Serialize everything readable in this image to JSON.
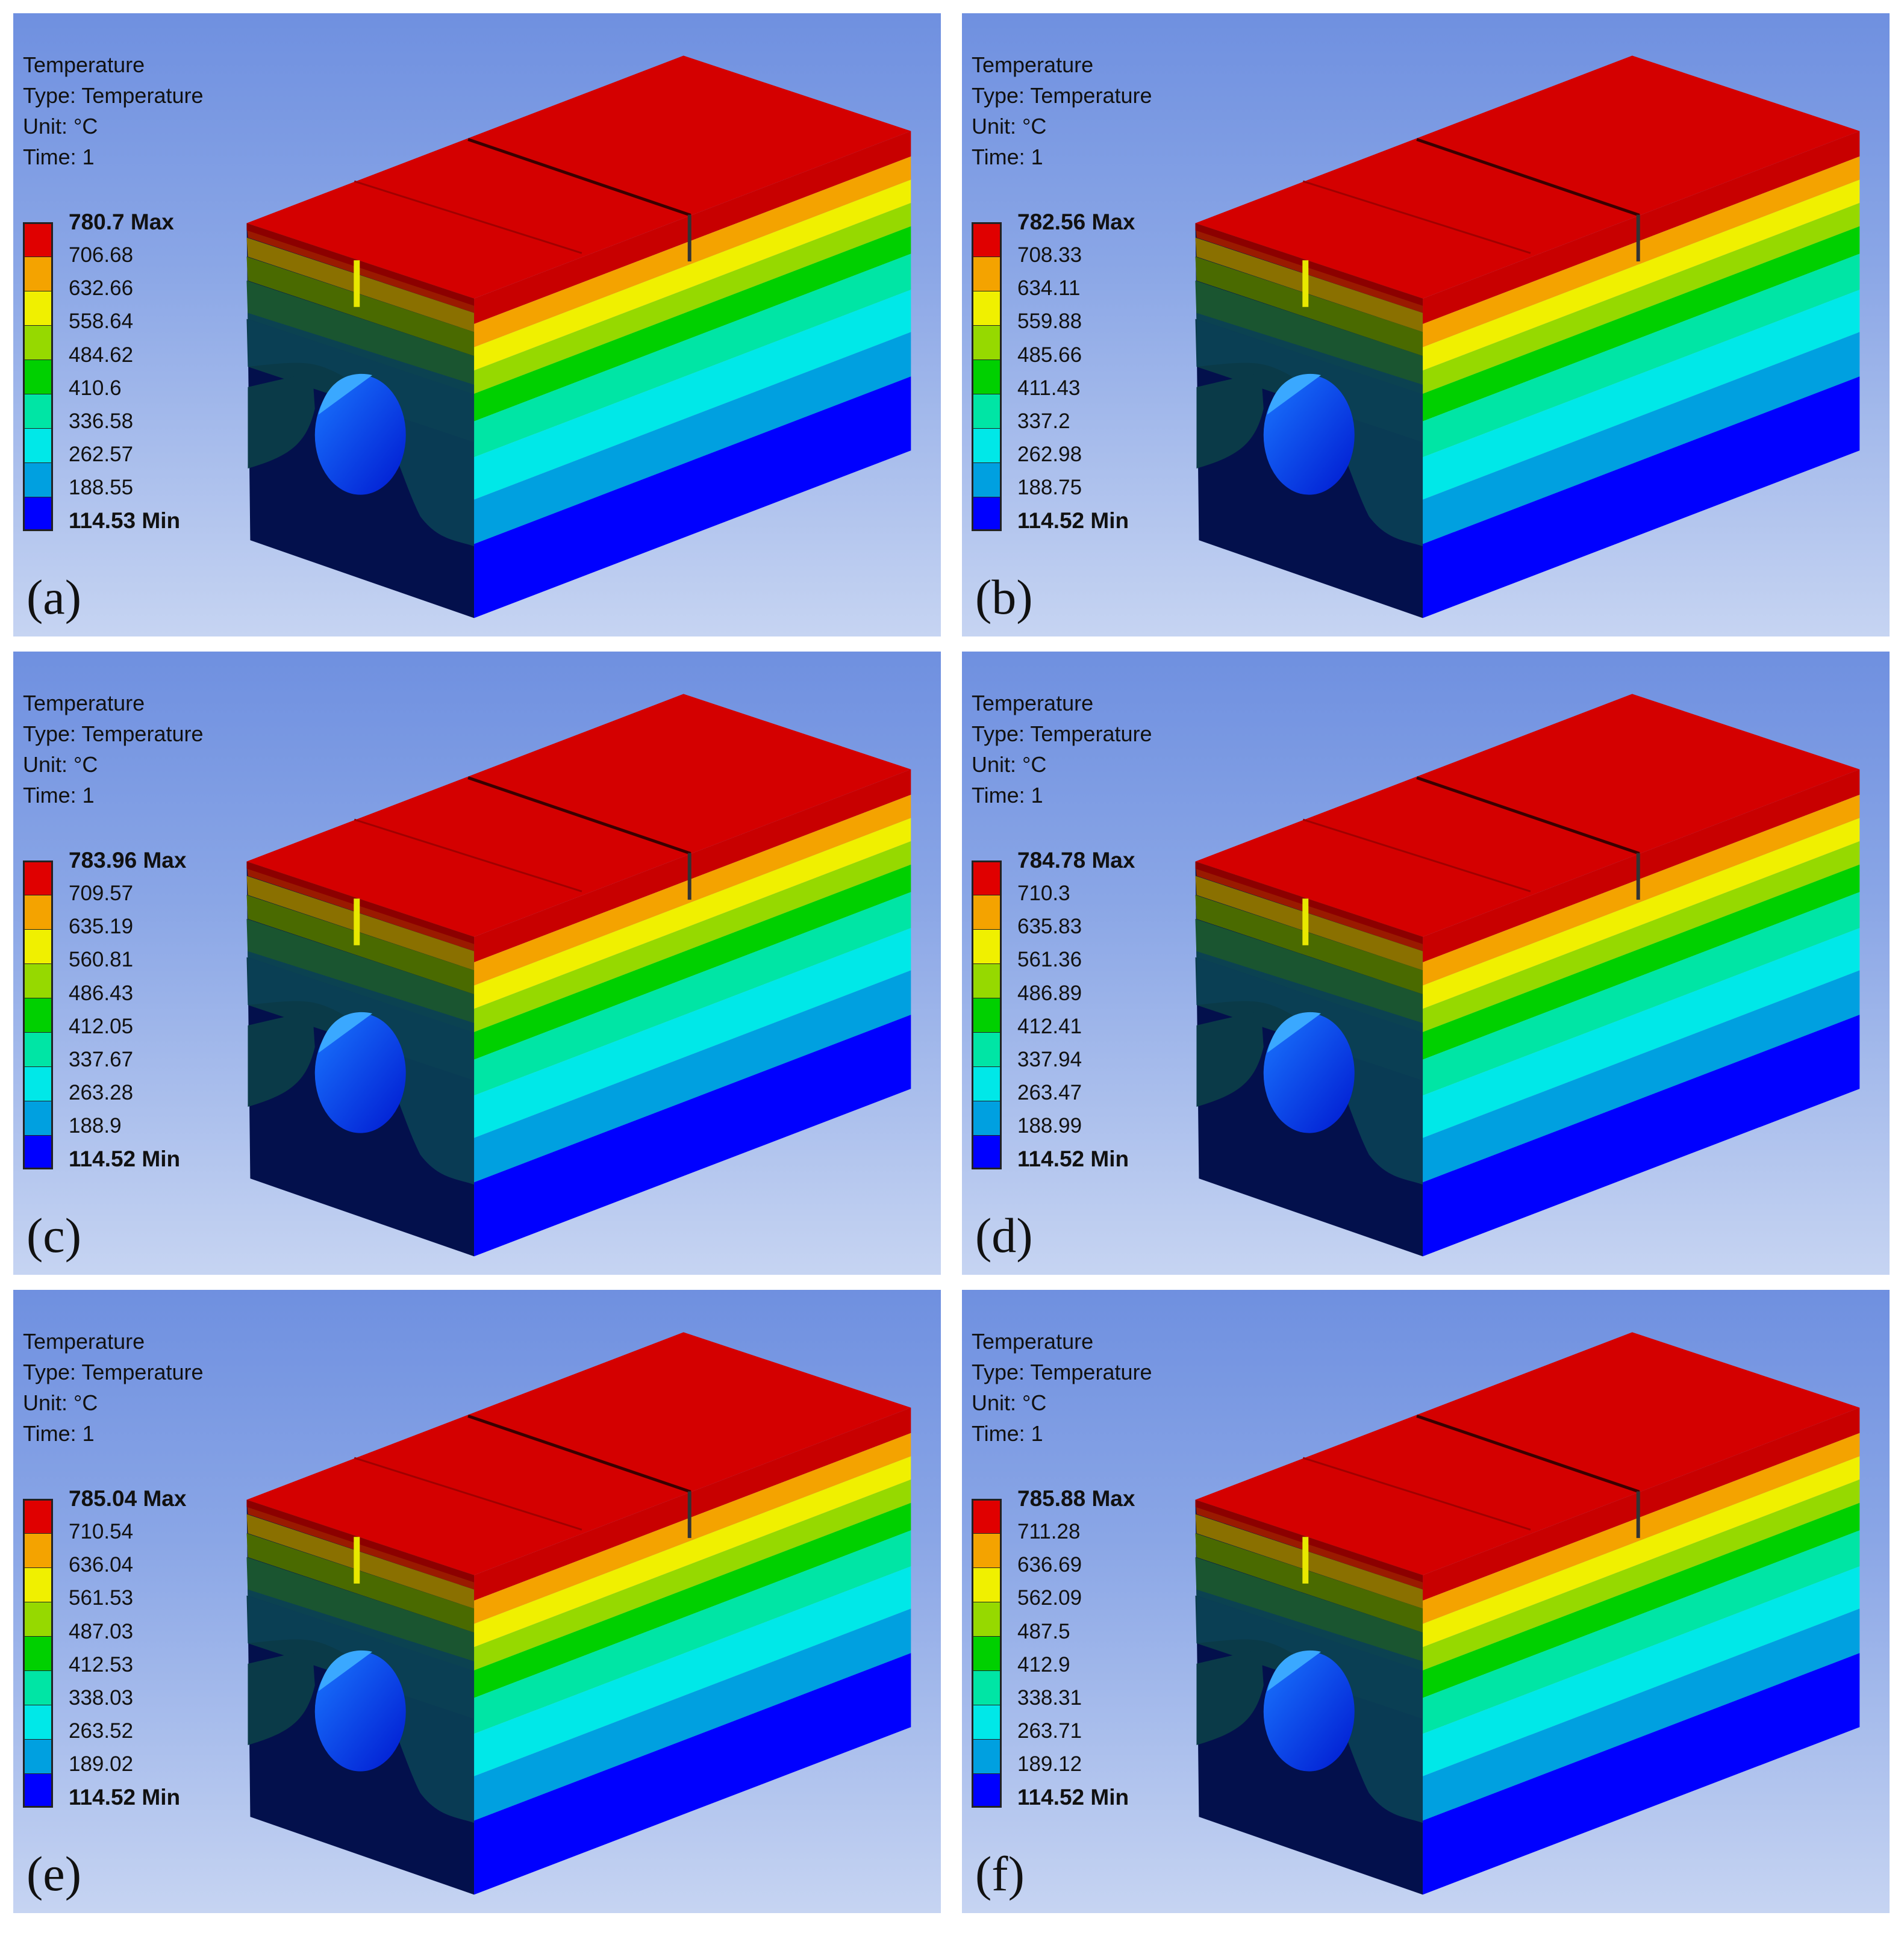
{
  "colors": {
    "bands": [
      "#0000ff",
      "#00a0e0",
      "#00e8e8",
      "#00e5a5",
      "#00d000",
      "#96d900",
      "#f0f000",
      "#f4a300",
      "#e00000"
    ],
    "top_face": "#d40000",
    "cold_front": "#03104c"
  },
  "info_lines": {
    "title": "Temperature",
    "type": "Type: Temperature",
    "unit": "Unit: °C",
    "time": "Time: 1"
  },
  "panels": [
    {
      "tag": "(a)",
      "max_label": "780.7 Max",
      "min_label": "114.53 Min",
      "mid_labels": [
        "706.68",
        "632.66",
        "558.64",
        "484.62",
        "410.6",
        "336.58",
        "262.57",
        "188.55"
      ]
    },
    {
      "tag": "(b)",
      "max_label": "782.56 Max",
      "min_label": "114.52 Min",
      "mid_labels": [
        "708.33",
        "634.11",
        "559.88",
        "485.66",
        "411.43",
        "337.2",
        "262.98",
        "188.75"
      ]
    },
    {
      "tag": "(c)",
      "max_label": "783.96 Max",
      "min_label": "114.52 Min",
      "mid_labels": [
        "709.57",
        "635.19",
        "560.81",
        "486.43",
        "412.05",
        "337.67",
        "263.28",
        "188.9"
      ]
    },
    {
      "tag": "(d)",
      "max_label": "784.78 Max",
      "min_label": "114.52 Min",
      "mid_labels": [
        "710.3",
        "635.83",
        "561.36",
        "486.89",
        "412.41",
        "337.94",
        "263.47",
        "188.99"
      ]
    },
    {
      "tag": "(e)",
      "max_label": "785.04 Max",
      "min_label": "114.52 Min",
      "mid_labels": [
        "710.54",
        "636.04",
        "561.53",
        "487.03",
        "412.53",
        "338.03",
        "263.52",
        "189.02"
      ]
    },
    {
      "tag": "(f)",
      "max_label": "785.88 Max",
      "min_label": "114.52 Min",
      "mid_labels": [
        "711.28",
        "636.69",
        "562.09",
        "487.5",
        "412.9",
        "338.31",
        "263.71",
        "189.12"
      ]
    }
  ]
}
